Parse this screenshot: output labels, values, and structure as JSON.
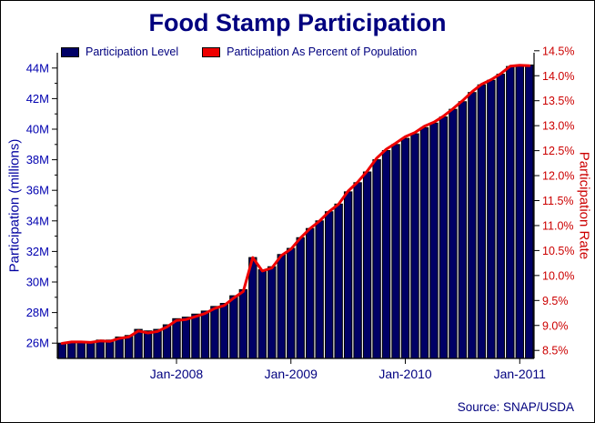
{
  "title": "Food Stamp Participation",
  "source": "Source: SNAP/USDA",
  "legend": [
    {
      "label": "Participation Level",
      "color": "#000066"
    },
    {
      "label": "Participation As Percent of Population",
      "color": "#ee0000"
    }
  ],
  "colors": {
    "bar_fill": "#000066",
    "bar_stroke": "#000000",
    "line": "#ee0000",
    "axis": "#000000",
    "title": "#00007f",
    "left_tick": "#0000b0",
    "right_tick": "#cc0000",
    "x_tick": "#000080",
    "frame_border": "#000000"
  },
  "chart_data": {
    "type": "bar",
    "title": "Food Stamp Participation",
    "grid": false,
    "legend_position": "top-left-inside",
    "x": [
      "Jan-2007",
      "Feb-2007",
      "Mar-2007",
      "Apr-2007",
      "May-2007",
      "Jun-2007",
      "Jul-2007",
      "Aug-2007",
      "Sep-2007",
      "Oct-2007",
      "Nov-2007",
      "Dec-2007",
      "Jan-2008",
      "Feb-2008",
      "Mar-2008",
      "Apr-2008",
      "May-2008",
      "Jun-2008",
      "Jul-2008",
      "Aug-2008",
      "Sep-2008",
      "Oct-2008",
      "Nov-2008",
      "Dec-2008",
      "Jan-2009",
      "Feb-2009",
      "Mar-2009",
      "Apr-2009",
      "May-2009",
      "Jun-2009",
      "Jul-2009",
      "Aug-2009",
      "Sep-2009",
      "Oct-2009",
      "Nov-2009",
      "Dec-2009",
      "Jan-2010",
      "Feb-2010",
      "Mar-2010",
      "Apr-2010",
      "May-2010",
      "Jun-2010",
      "Jul-2010",
      "Aug-2010",
      "Sep-2010",
      "Oct-2010",
      "Nov-2010",
      "Dec-2010",
      "Jan-2011",
      "Feb-2011"
    ],
    "series": [
      {
        "name": "Participation Level",
        "type": "bar",
        "axis": "left",
        "unit": "millions of persons",
        "values": [
          26.0,
          26.1,
          26.1,
          26.1,
          26.2,
          26.2,
          26.4,
          26.5,
          26.9,
          26.8,
          26.9,
          27.2,
          27.6,
          27.7,
          27.9,
          28.1,
          28.4,
          28.6,
          29.1,
          29.5,
          31.6,
          30.8,
          31.0,
          31.8,
          32.2,
          32.9,
          33.5,
          34.0,
          34.6,
          35.1,
          35.9,
          36.5,
          37.2,
          38.0,
          38.6,
          39.0,
          39.4,
          39.7,
          40.1,
          40.4,
          40.8,
          41.3,
          41.8,
          42.4,
          42.9,
          43.2,
          43.6,
          44.1,
          44.2,
          44.2
        ]
      },
      {
        "name": "Participation As Percent of Population",
        "type": "line",
        "axis": "right",
        "unit": "percent",
        "values": [
          8.64,
          8.67,
          8.67,
          8.66,
          8.69,
          8.68,
          8.74,
          8.77,
          8.89,
          8.85,
          8.88,
          8.97,
          9.1,
          9.12,
          9.18,
          9.24,
          9.34,
          9.4,
          9.55,
          9.68,
          10.36,
          10.09,
          10.15,
          10.4,
          10.53,
          10.75,
          10.94,
          11.09,
          11.28,
          11.43,
          11.69,
          11.87,
          12.09,
          12.35,
          12.53,
          12.65,
          12.78,
          12.86,
          12.99,
          13.07,
          13.19,
          13.34,
          13.5,
          13.68,
          13.83,
          13.92,
          14.04,
          14.19,
          14.21,
          14.2
        ]
      }
    ],
    "left_axis": {
      "label": "Participation (millions)",
      "range": [
        25,
        45
      ],
      "ticks": [
        26,
        28,
        30,
        32,
        34,
        36,
        38,
        40,
        42,
        44
      ],
      "tick_suffix": "M"
    },
    "right_axis": {
      "label": "Participation Rate",
      "range": [
        8.34,
        14.46
      ],
      "ticks": [
        8.5,
        9.0,
        9.5,
        10.0,
        10.5,
        11.0,
        11.5,
        12.0,
        12.5,
        13.0,
        13.5,
        14.0,
        14.5
      ],
      "tick_suffix": "%"
    },
    "x_axis": {
      "ticks": [
        {
          "index": 12,
          "label": "Jan-2008"
        },
        {
          "index": 24,
          "label": "Jan-2009"
        },
        {
          "index": 36,
          "label": "Jan-2010"
        },
        {
          "index": 48,
          "label": "Jan-2011"
        }
      ]
    }
  }
}
